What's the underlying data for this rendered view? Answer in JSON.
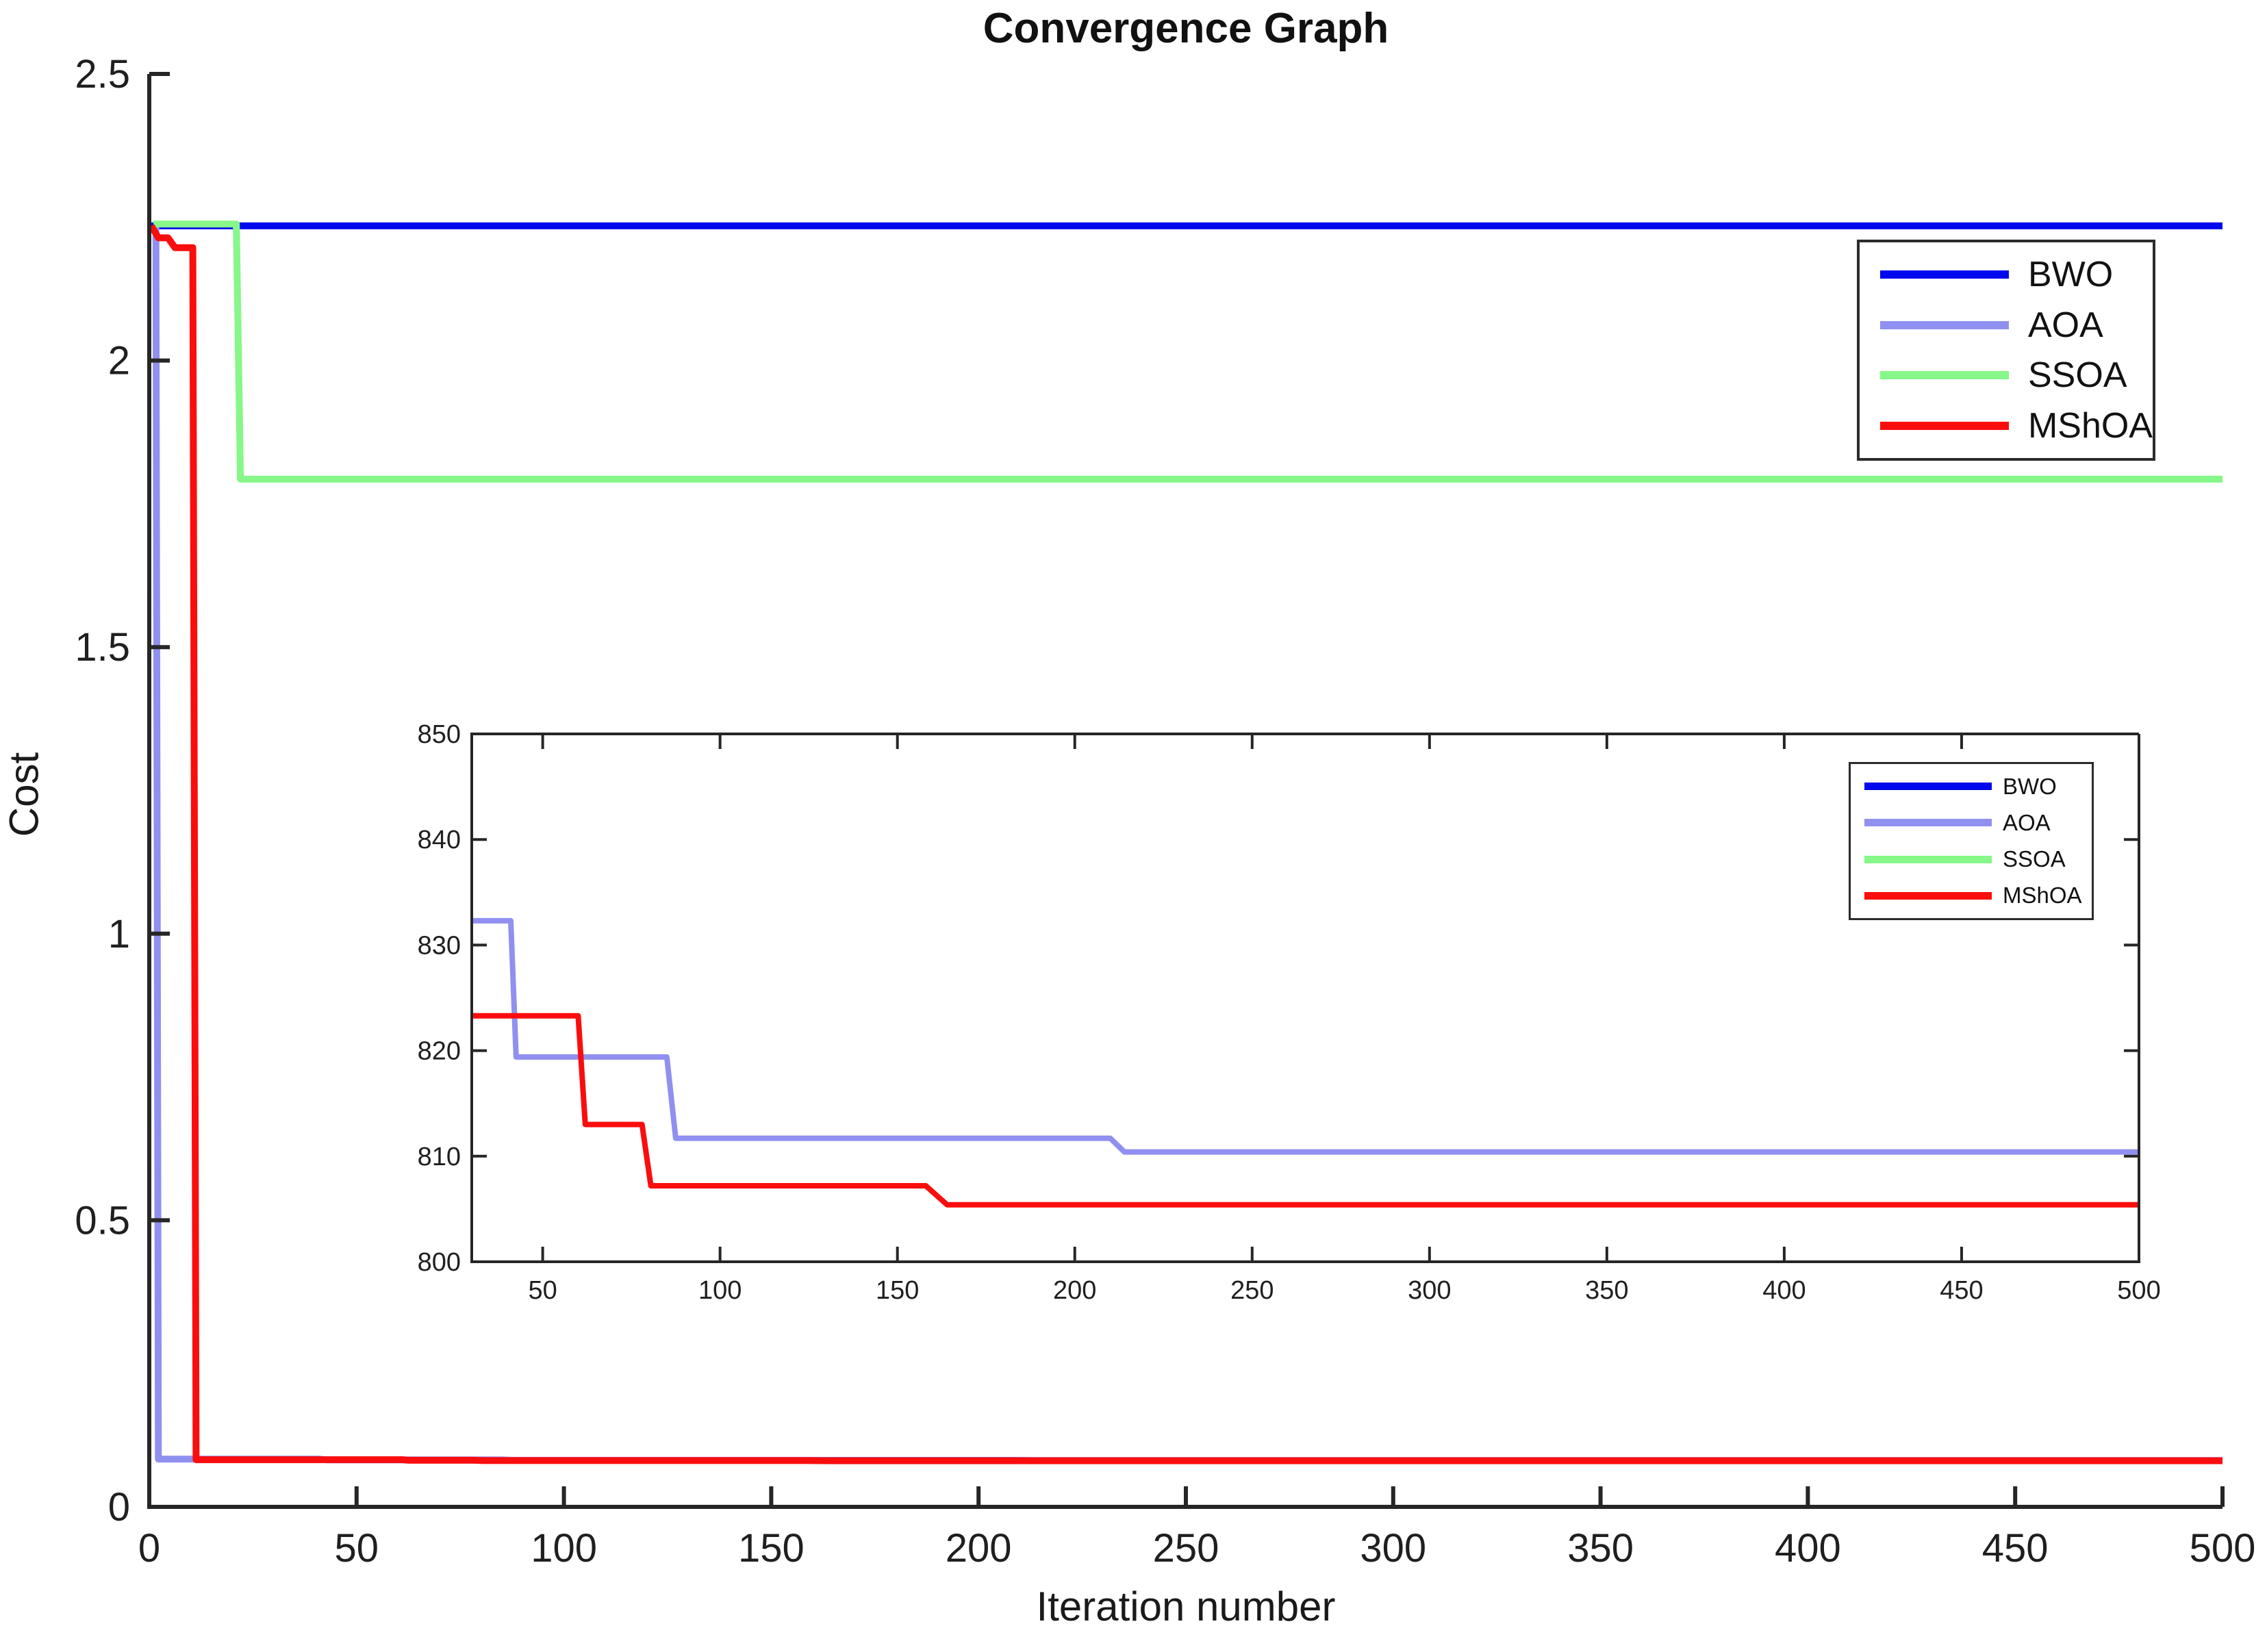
{
  "figure": {
    "title": "Convergence Graph",
    "x_axis_label": "Iteration number",
    "y_axis_label": "Cost",
    "background_color": "#FFFFFF",
    "axis_color": "#262626"
  },
  "series_meta": [
    {
      "name": "BWO",
      "color": "#0008EE"
    },
    {
      "name": "AOA",
      "color": "#9090F0"
    },
    {
      "name": "SSOA",
      "color": "#86F788"
    },
    {
      "name": "MShOA",
      "color": "#FA0D0D"
    }
  ],
  "chart_data": [
    {
      "type": "line",
      "name": "main-plot",
      "title": "Convergence Graph",
      "xlabel": "Iteration number",
      "ylabel": "Cost",
      "xlim": [
        0,
        500
      ],
      "ylim": [
        0,
        2.5
      ],
      "xticks": [
        0,
        50,
        100,
        150,
        200,
        250,
        300,
        350,
        400,
        450,
        500
      ],
      "xtick_labels": [
        "0",
        "50",
        "100",
        "150",
        "200",
        "250",
        "300",
        "350",
        "400",
        "450",
        "500"
      ],
      "yticks": [
        0,
        0.5,
        1,
        1.5,
        2,
        2.5
      ],
      "ytick_labels": [
        "0",
        "0.5",
        "1",
        "1.5",
        "2",
        "2.5"
      ],
      "grid": false,
      "box": false,
      "legend_position": "top-right",
      "series": [
        {
          "name": "BWO",
          "color": "#0008EE",
          "points": [
            [
              0.5,
              2.235
            ],
            [
              500,
              2.235
            ]
          ]
        },
        {
          "name": "AOA",
          "color": "#9090F0",
          "points": [
            [
              1,
              2.232
            ],
            [
              1.6,
              2.232
            ],
            [
              2.2,
              0.0832
            ],
            [
              41,
              0.0832
            ],
            [
              43,
              0.0819
            ],
            [
              85,
              0.0819
            ],
            [
              87.5,
              0.0812
            ],
            [
              210,
              0.0812
            ],
            [
              214,
              0.081
            ],
            [
              500,
              0.081
            ]
          ]
        },
        {
          "name": "SSOA",
          "color": "#86F788",
          "points": [
            [
              1,
              2.238
            ],
            [
              21,
              2.238
            ],
            [
              22,
              1.793
            ],
            [
              500,
              1.793
            ]
          ]
        },
        {
          "name": "MShOA",
          "color": "#FA0D0D",
          "points": [
            [
              0.5,
              2.235
            ],
            [
              2.2,
              2.214
            ],
            [
              4.5,
              2.214
            ],
            [
              6.2,
              2.197
            ],
            [
              10.5,
              2.197
            ],
            [
              11.3,
              0.0823
            ],
            [
              61,
              0.0823
            ],
            [
              62.5,
              0.0813
            ],
            [
              78,
              0.0813
            ],
            [
              80.5,
              0.0807
            ],
            [
              159,
              0.0807
            ],
            [
              164,
              0.0805
            ],
            [
              500,
              0.0805
            ]
          ]
        }
      ]
    },
    {
      "type": "line",
      "name": "inset-zoom-plot",
      "title": "",
      "xlabel": "",
      "ylabel": "",
      "xlim": [
        30,
        500
      ],
      "ylim": [
        800,
        850
      ],
      "xticks": [
        50,
        100,
        150,
        200,
        250,
        300,
        350,
        400,
        450,
        500
      ],
      "xtick_labels": [
        "50",
        "100",
        "150",
        "200",
        "250",
        "300",
        "350",
        "400",
        "450",
        "500"
      ],
      "yticks": [
        800,
        810,
        820,
        830,
        840,
        850
      ],
      "ytick_labels": [
        "800",
        "810",
        "820",
        "830",
        "840",
        "850"
      ],
      "grid": false,
      "box": true,
      "legend_position": "top-right",
      "series": [
        {
          "name": "AOA",
          "color": "#9090F0",
          "points": [
            [
              30,
              832.3
            ],
            [
              41,
              832.3
            ],
            [
              42.5,
              819.4
            ],
            [
              85,
              819.4
            ],
            [
              87.5,
              811.7
            ],
            [
              210,
              811.7
            ],
            [
              214,
              810.4
            ],
            [
              500,
              810.4
            ]
          ]
        },
        {
          "name": "MShOA",
          "color": "#FA0D0D",
          "points": [
            [
              30,
              823.3
            ],
            [
              60,
              823.3
            ],
            [
              62,
              813.0
            ],
            [
              78,
              813.0
            ],
            [
              80.5,
              807.2
            ],
            [
              158,
              807.2
            ],
            [
              164,
              805.4
            ],
            [
              500,
              805.4
            ]
          ]
        }
      ]
    }
  ]
}
